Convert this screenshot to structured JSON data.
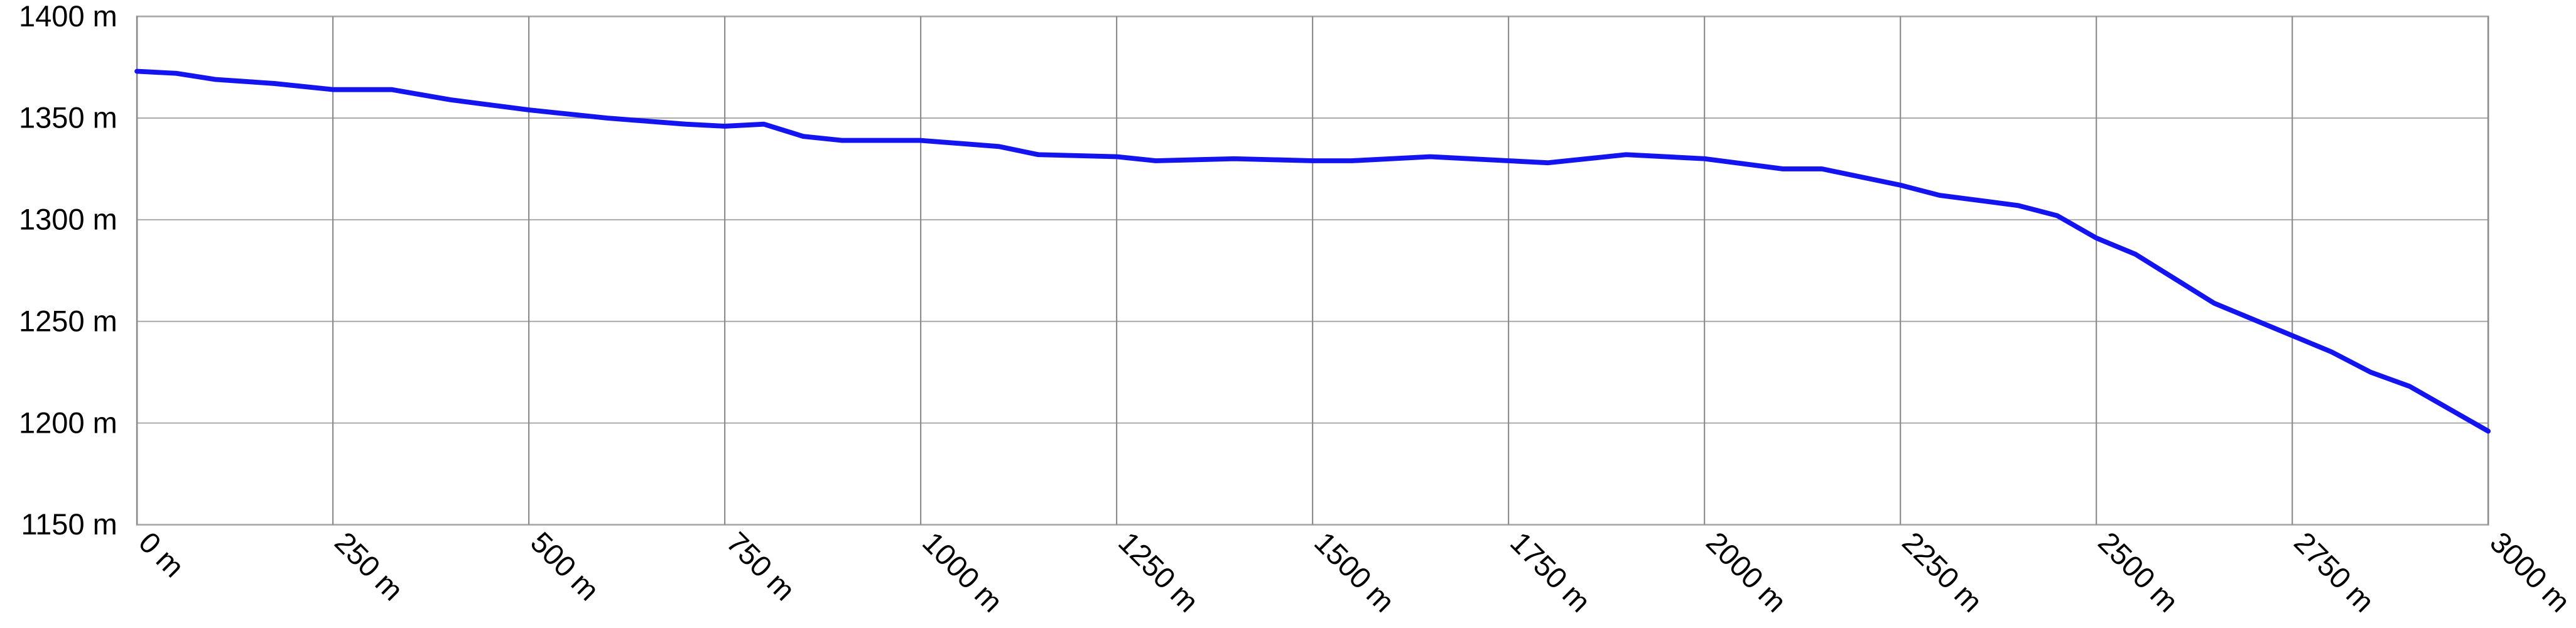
{
  "chart_data": {
    "type": "line",
    "x": [
      0,
      50,
      100,
      175,
      250,
      325,
      400,
      500,
      600,
      700,
      750,
      800,
      850,
      900,
      1000,
      1100,
      1150,
      1250,
      1300,
      1400,
      1500,
      1550,
      1650,
      1750,
      1800,
      1900,
      2000,
      2100,
      2150,
      2250,
      2300,
      2400,
      2450,
      2500,
      2550,
      2600,
      2650,
      2700,
      2750,
      2800,
      2850,
      2900,
      3000
    ],
    "values": [
      1373,
      1372,
      1369,
      1367,
      1364,
      1364,
      1359,
      1354,
      1350,
      1347,
      1346,
      1347,
      1341,
      1339,
      1339,
      1336,
      1332,
      1331,
      1329,
      1330,
      1329,
      1329,
      1331,
      1329,
      1328,
      1332,
      1330,
      1325,
      1325,
      1317,
      1312,
      1307,
      1302,
      1291,
      1283,
      1271,
      1259,
      1251,
      1243,
      1235,
      1225,
      1218,
      1196
    ],
    "color": "#1414f0",
    "xlim": [
      0,
      3000
    ],
    "xticks": [
      {
        "value": 0,
        "label": "0 m"
      },
      {
        "value": 250,
        "label": "250 m"
      },
      {
        "value": 500,
        "label": "500 m"
      },
      {
        "value": 750,
        "label": "750 m"
      },
      {
        "value": 1000,
        "label": "1000 m"
      },
      {
        "value": 1250,
        "label": "1250 m"
      },
      {
        "value": 1500,
        "label": "1500 m"
      },
      {
        "value": 1750,
        "label": "1750 m"
      },
      {
        "value": 2000,
        "label": "2000 m"
      },
      {
        "value": 2250,
        "label": "2250 m"
      },
      {
        "value": 2500,
        "label": "2500 m"
      },
      {
        "value": 2750,
        "label": "2750 m"
      },
      {
        "value": 3000,
        "label": "3000 m"
      }
    ],
    "ylim": [
      1150,
      1400
    ],
    "yticks": [
      {
        "value": 1150,
        "label": "1150 m"
      },
      {
        "value": 1200,
        "label": "1200 m"
      },
      {
        "value": 1250,
        "label": "1250 m"
      },
      {
        "value": 1300,
        "label": "1300 m"
      },
      {
        "value": 1350,
        "label": "1350 m"
      },
      {
        "value": 1400,
        "label": "1400 m"
      }
    ],
    "grid": true
  }
}
